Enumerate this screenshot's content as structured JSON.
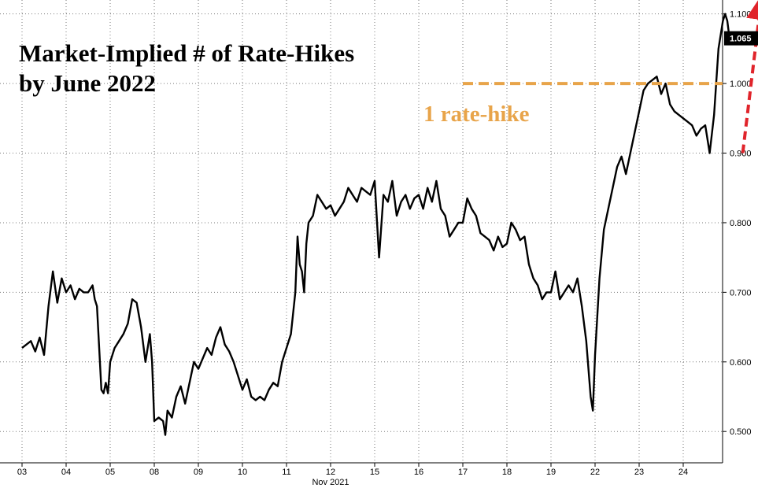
{
  "chart_data": {
    "type": "line",
    "title_lines": [
      "Market-Implied # of Rate-Hikes",
      "by June 2022"
    ],
    "xlabel": "Nov 2021",
    "ylabel": "",
    "ylim": [
      0.455,
      1.12
    ],
    "yticks": [
      0.5,
      0.6,
      0.7,
      0.8,
      0.9,
      1.0,
      1.1
    ],
    "ytick_labels": [
      "0.500",
      "0.600",
      "0.700",
      "0.800",
      "0.900",
      "1.000",
      "1.100"
    ],
    "categories": [
      "03",
      "04",
      "05",
      "08",
      "09",
      "10",
      "11",
      "12",
      "15",
      "16",
      "17",
      "18",
      "19",
      "22",
      "23",
      "24"
    ],
    "grid": true,
    "last_value_label": "1.065",
    "last_value_color": "#000000",
    "series": [
      {
        "color": "#000000",
        "points": [
          [
            0.0,
            0.62
          ],
          [
            0.1,
            0.625
          ],
          [
            0.2,
            0.63
          ],
          [
            0.3,
            0.615
          ],
          [
            0.4,
            0.635
          ],
          [
            0.5,
            0.61
          ],
          [
            0.6,
            0.68
          ],
          [
            0.7,
            0.73
          ],
          [
            0.8,
            0.685
          ],
          [
            0.9,
            0.72
          ],
          [
            1.0,
            0.7
          ],
          [
            1.1,
            0.71
          ],
          [
            1.2,
            0.69
          ],
          [
            1.3,
            0.705
          ],
          [
            1.4,
            0.7
          ],
          [
            1.5,
            0.7
          ],
          [
            1.6,
            0.71
          ],
          [
            1.65,
            0.69
          ],
          [
            1.7,
            0.68
          ],
          [
            1.75,
            0.62
          ],
          [
            1.8,
            0.56
          ],
          [
            1.85,
            0.555
          ],
          [
            1.9,
            0.57
          ],
          [
            1.95,
            0.555
          ],
          [
            2.0,
            0.6
          ],
          [
            2.1,
            0.62
          ],
          [
            2.2,
            0.63
          ],
          [
            2.3,
            0.64
          ],
          [
            2.4,
            0.655
          ],
          [
            2.5,
            0.69
          ],
          [
            2.6,
            0.685
          ],
          [
            2.7,
            0.65
          ],
          [
            2.8,
            0.6
          ],
          [
            2.9,
            0.64
          ],
          [
            2.95,
            0.6
          ],
          [
            3.0,
            0.515
          ],
          [
            3.1,
            0.52
          ],
          [
            3.2,
            0.515
          ],
          [
            3.25,
            0.495
          ],
          [
            3.3,
            0.53
          ],
          [
            3.4,
            0.52
          ],
          [
            3.5,
            0.55
          ],
          [
            3.6,
            0.565
          ],
          [
            3.7,
            0.54
          ],
          [
            3.8,
            0.57
          ],
          [
            3.9,
            0.6
          ],
          [
            4.0,
            0.59
          ],
          [
            4.1,
            0.605
          ],
          [
            4.2,
            0.62
          ],
          [
            4.3,
            0.61
          ],
          [
            4.4,
            0.635
          ],
          [
            4.5,
            0.65
          ],
          [
            4.6,
            0.625
          ],
          [
            4.7,
            0.615
          ],
          [
            4.8,
            0.6
          ],
          [
            4.9,
            0.58
          ],
          [
            5.0,
            0.56
          ],
          [
            5.1,
            0.575
          ],
          [
            5.2,
            0.55
          ],
          [
            5.3,
            0.545
          ],
          [
            5.4,
            0.55
          ],
          [
            5.5,
            0.545
          ],
          [
            5.6,
            0.56
          ],
          [
            5.7,
            0.57
          ],
          [
            5.8,
            0.565
          ],
          [
            5.9,
            0.6
          ],
          [
            6.0,
            0.62
          ],
          [
            6.1,
            0.64
          ],
          [
            6.2,
            0.7
          ],
          [
            6.25,
            0.78
          ],
          [
            6.3,
            0.74
          ],
          [
            6.35,
            0.73
          ],
          [
            6.4,
            0.7
          ],
          [
            6.45,
            0.77
          ],
          [
            6.5,
            0.8
          ],
          [
            6.6,
            0.81
          ],
          [
            6.7,
            0.84
          ],
          [
            6.8,
            0.83
          ],
          [
            6.9,
            0.82
          ],
          [
            7.0,
            0.825
          ],
          [
            7.1,
            0.81
          ],
          [
            7.2,
            0.82
          ],
          [
            7.3,
            0.83
          ],
          [
            7.4,
            0.85
          ],
          [
            7.5,
            0.84
          ],
          [
            7.6,
            0.83
          ],
          [
            7.7,
            0.85
          ],
          [
            7.8,
            0.845
          ],
          [
            7.9,
            0.84
          ],
          [
            8.0,
            0.86
          ],
          [
            8.1,
            0.75
          ],
          [
            8.2,
            0.84
          ],
          [
            8.3,
            0.83
          ],
          [
            8.4,
            0.86
          ],
          [
            8.5,
            0.81
          ],
          [
            8.6,
            0.83
          ],
          [
            8.7,
            0.84
          ],
          [
            8.8,
            0.82
          ],
          [
            8.9,
            0.835
          ],
          [
            9.0,
            0.84
          ],
          [
            9.1,
            0.82
          ],
          [
            9.2,
            0.85
          ],
          [
            9.3,
            0.83
          ],
          [
            9.4,
            0.86
          ],
          [
            9.5,
            0.82
          ],
          [
            9.6,
            0.81
          ],
          [
            9.7,
            0.78
          ],
          [
            9.8,
            0.79
          ],
          [
            9.9,
            0.8
          ],
          [
            10.0,
            0.8
          ],
          [
            10.1,
            0.835
          ],
          [
            10.2,
            0.82
          ],
          [
            10.3,
            0.81
          ],
          [
            10.4,
            0.785
          ],
          [
            10.5,
            0.78
          ],
          [
            10.6,
            0.775
          ],
          [
            10.7,
            0.76
          ],
          [
            10.8,
            0.78
          ],
          [
            10.9,
            0.765
          ],
          [
            11.0,
            0.77
          ],
          [
            11.1,
            0.8
          ],
          [
            11.2,
            0.79
          ],
          [
            11.3,
            0.775
          ],
          [
            11.4,
            0.78
          ],
          [
            11.5,
            0.74
          ],
          [
            11.6,
            0.72
          ],
          [
            11.7,
            0.71
          ],
          [
            11.8,
            0.69
          ],
          [
            11.9,
            0.7
          ],
          [
            12.0,
            0.7
          ],
          [
            12.1,
            0.73
          ],
          [
            12.2,
            0.69
          ],
          [
            12.3,
            0.7
          ],
          [
            12.4,
            0.71
          ],
          [
            12.5,
            0.7
          ],
          [
            12.6,
            0.72
          ],
          [
            12.7,
            0.68
          ],
          [
            12.8,
            0.63
          ],
          [
            12.9,
            0.55
          ],
          [
            12.95,
            0.53
          ],
          [
            13.0,
            0.61
          ],
          [
            13.1,
            0.72
          ],
          [
            13.2,
            0.79
          ],
          [
            13.3,
            0.82
          ],
          [
            13.4,
            0.85
          ],
          [
            13.5,
            0.88
          ],
          [
            13.6,
            0.895
          ],
          [
            13.7,
            0.87
          ],
          [
            13.8,
            0.9
          ],
          [
            13.9,
            0.93
          ],
          [
            14.0,
            0.96
          ],
          [
            14.1,
            0.99
          ],
          [
            14.2,
            1.0
          ],
          [
            14.3,
            1.005
          ],
          [
            14.4,
            1.01
          ],
          [
            14.5,
            0.985
          ],
          [
            14.6,
            1.0
          ],
          [
            14.7,
            0.97
          ],
          [
            14.8,
            0.96
          ],
          [
            14.9,
            0.955
          ],
          [
            15.0,
            0.95
          ],
          [
            15.1,
            0.945
          ],
          [
            15.2,
            0.94
          ],
          [
            15.3,
            0.925
          ],
          [
            15.4,
            0.935
          ],
          [
            15.5,
            0.94
          ],
          [
            15.6,
            0.9
          ],
          [
            15.7,
            0.955
          ],
          [
            15.8,
            1.05
          ],
          [
            15.9,
            1.09
          ],
          [
            15.95,
            1.1
          ],
          [
            16.0,
            1.09
          ],
          [
            16.05,
            1.065
          ]
        ]
      }
    ],
    "annotations": [
      {
        "text": "1 rate-hike",
        "y": 1.0,
        "color": "#e8a44a",
        "style": "dashed-horizontal-line"
      },
      {
        "style": "dashed-arrow",
        "color": "#e0242b",
        "from": [
          16.35,
          0.9
        ],
        "to": [
          16.75,
          1.11
        ]
      }
    ]
  }
}
